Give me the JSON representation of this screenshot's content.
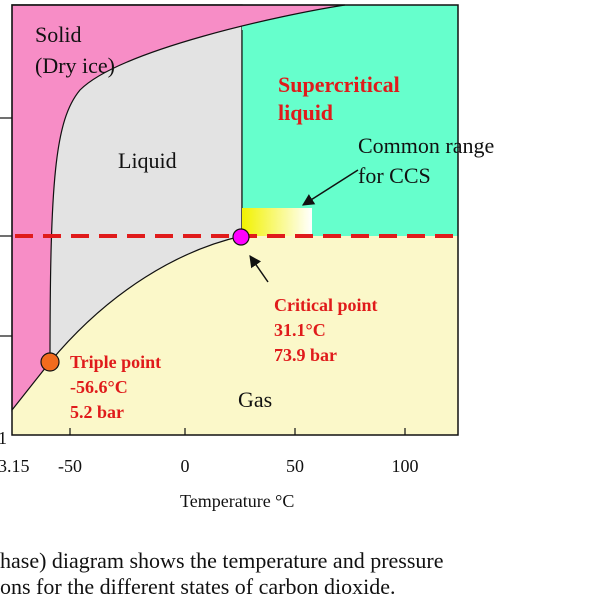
{
  "diagram": {
    "regions": {
      "solid": [
        "Solid",
        "(Dry ice)"
      ],
      "supercritical": [
        "Supercritical",
        "liquid"
      ],
      "liquid": "Liquid",
      "gas": "Gas"
    },
    "ccs_note": [
      "Common range",
      "for CCS"
    ],
    "critical_point": [
      "Critical point",
      "31.1°C",
      "73.9 bar"
    ],
    "triple_point": [
      "Triple point",
      "-56.6°C",
      "5.2 bar"
    ],
    "y_axis_label_partial": "1",
    "x_ticks": [
      "3.15",
      "-50",
      "0",
      "50",
      "100"
    ],
    "x_axis_label": "Temperature °C",
    "caption": [
      "hase) diagram shows the temperature and pressure",
      "ons for the different states of carbon dioxide."
    ]
  }
}
